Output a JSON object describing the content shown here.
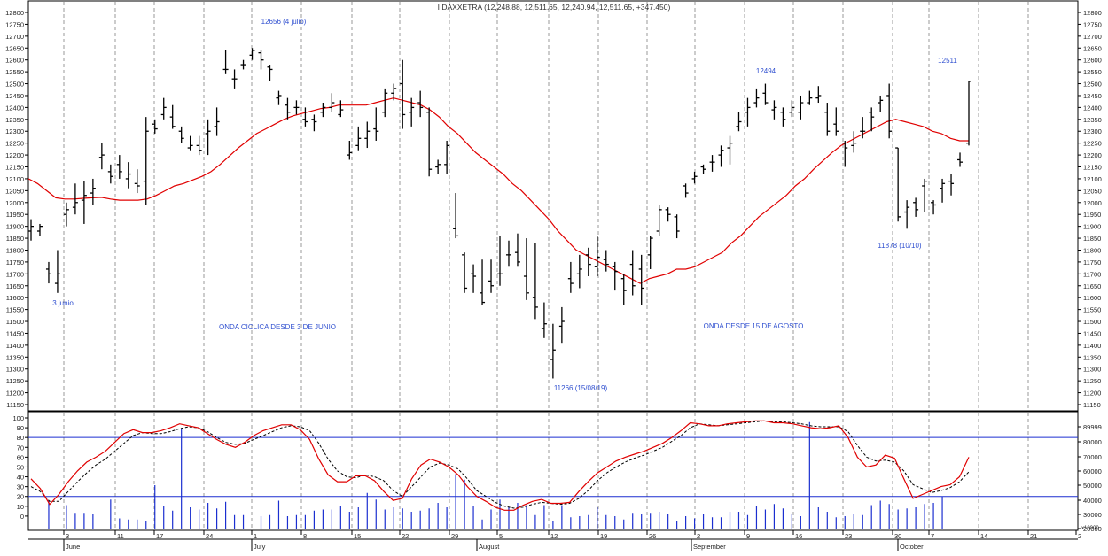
{
  "chart_data": [
    {
      "type": "ohlc",
      "title": "I DAXXETRA (12,248.88, 12,511.65, 12,240.94, 12,511.65, +347.450)",
      "ylim": [
        11150,
        12800
      ],
      "y_ticks": [
        11150,
        11200,
        11250,
        11300,
        11350,
        11400,
        11450,
        11500,
        11550,
        11600,
        11650,
        11700,
        11750,
        11800,
        11850,
        11900,
        11950,
        12000,
        12050,
        12100,
        12150,
        12200,
        12250,
        12300,
        12350,
        12400,
        12450,
        12500,
        12550,
        12600,
        12650,
        12700,
        12750,
        12800
      ],
      "y_tick_labels": [
        "11150",
        "11200",
        "11250",
        "11300",
        "11350",
        "11400",
        "11450",
        "11500",
        "11550",
        "11600",
        "11650",
        "11700",
        "11750",
        "11800",
        "11850",
        "11900",
        "11950",
        "12000",
        "12050",
        "12100",
        "12150",
        "12200",
        "12250",
        "12300",
        "12350",
        "12400",
        "12450",
        "12500",
        "12550",
        "12600",
        "12650",
        "12700",
        "12750",
        "12800"
      ],
      "bars": [
        [
          11880,
          11930,
          11840,
          11900
        ],
        [
          11880,
          11910,
          11860,
          11900
        ],
        [
          11720,
          11750,
          11660,
          11700
        ],
        [
          11660,
          11800,
          11620,
          11700
        ],
        [
          11950,
          12000,
          11900,
          11970
        ],
        [
          11980,
          12080,
          11950,
          12000
        ],
        [
          12010,
          12090,
          11910,
          12030
        ],
        [
          12040,
          12100,
          11990,
          12060
        ],
        [
          12190,
          12250,
          12140,
          12200
        ],
        [
          12130,
          12160,
          12080,
          12110
        ],
        [
          12160,
          12200,
          12100,
          12130
        ],
        [
          12100,
          12170,
          12060,
          12120
        ],
        [
          12080,
          12140,
          12040,
          12070
        ],
        [
          12090,
          12360,
          11990,
          12300
        ],
        [
          12330,
          12350,
          12290,
          12310
        ],
        [
          12370,
          12440,
          12350,
          12400
        ],
        [
          12360,
          12410,
          12310,
          12320
        ],
        [
          12300,
          12320,
          12250,
          12270
        ],
        [
          12230,
          12280,
          12220,
          12240
        ],
        [
          12240,
          12280,
          12200,
          12220
        ],
        [
          12290,
          12350,
          12200,
          12300
        ],
        [
          12320,
          12400,
          12280,
          12340
        ],
        [
          12560,
          12640,
          12540,
          12560
        ],
        [
          12520,
          12560,
          12480,
          12520
        ],
        [
          12580,
          12600,
          12560,
          12580
        ],
        [
          12620,
          12650,
          12600,
          12640
        ],
        [
          12630,
          12640,
          12560,
          12600
        ],
        [
          12570,
          12580,
          12510,
          12560
        ],
        [
          12440,
          12470,
          12410,
          12450
        ],
        [
          12410,
          12440,
          12350,
          12380
        ],
        [
          12400,
          12430,
          12370,
          12400
        ],
        [
          12350,
          12400,
          12320,
          12340
        ],
        [
          12350,
          12370,
          12300,
          12340
        ],
        [
          12380,
          12420,
          12360,
          12400
        ],
        [
          12400,
          12460,
          12380,
          12420
        ],
        [
          12370,
          12430,
          12360,
          12390
        ],
        [
          12200,
          12260,
          12180,
          12210
        ],
        [
          12240,
          12320,
          12220,
          12270
        ],
        [
          12270,
          12340,
          12230,
          12300
        ],
        [
          12310,
          12400,
          12260,
          12300
        ],
        [
          12380,
          12480,
          12360,
          12460
        ],
        [
          12460,
          12500,
          12430,
          12480
        ],
        [
          12500,
          12600,
          12310,
          12370
        ],
        [
          12380,
          12440,
          12320,
          12400
        ],
        [
          12420,
          12470,
          12360,
          12400
        ],
        [
          12380,
          12400,
          12110,
          12140
        ],
        [
          12150,
          12180,
          12120,
          12160
        ],
        [
          12160,
          12260,
          12120,
          12240
        ],
        [
          11890,
          12040,
          11850,
          11860
        ],
        [
          11780,
          11790,
          11620,
          11640
        ],
        [
          11700,
          11740,
          11620,
          11690
        ],
        [
          11620,
          11760,
          11570,
          11580
        ],
        [
          11670,
          11760,
          11620,
          11650
        ],
        [
          11700,
          11860,
          11650,
          11700
        ],
        [
          11780,
          11840,
          11730,
          11780
        ],
        [
          11790,
          11870,
          11730,
          11750
        ],
        [
          11690,
          11850,
          11590,
          11620
        ],
        [
          11600,
          11830,
          11510,
          11560
        ],
        [
          11470,
          11580,
          11430,
          11490
        ],
        [
          11340,
          11490,
          11260,
          11380
        ],
        [
          11480,
          11560,
          11410,
          11500
        ],
        [
          11680,
          11750,
          11620,
          11660
        ],
        [
          11700,
          11780,
          11640,
          11720
        ],
        [
          11780,
          11810,
          11690,
          11740
        ],
        [
          11730,
          11860,
          11690,
          11770
        ],
        [
          11760,
          11800,
          11710,
          11740
        ],
        [
          11730,
          11750,
          11630,
          11710
        ],
        [
          11680,
          11700,
          11570,
          11630
        ],
        [
          11740,
          11800,
          11610,
          11650
        ],
        [
          11720,
          11780,
          11570,
          11640
        ],
        [
          11780,
          11860,
          11720,
          11850
        ],
        [
          11880,
          11990,
          11860,
          11970
        ],
        [
          11970,
          11980,
          11920,
          11950
        ],
        [
          11940,
          11950,
          11850,
          11880
        ],
        [
          12070,
          12080,
          12020,
          12040
        ],
        [
          12100,
          12130,
          12080,
          12110
        ],
        [
          12150,
          12160,
          12120,
          12140
        ],
        [
          12170,
          12200,
          12130,
          12170
        ],
        [
          12200,
          12240,
          12150,
          12220
        ],
        [
          12230,
          12280,
          12160,
          12250
        ],
        [
          12320,
          12380,
          12300,
          12340
        ],
        [
          12380,
          12440,
          12320,
          12400
        ],
        [
          12420,
          12480,
          12400,
          12440
        ],
        [
          12460,
          12500,
          12410,
          12420
        ],
        [
          12390,
          12430,
          12350,
          12400
        ],
        [
          12380,
          12400,
          12320,
          12350
        ],
        [
          12380,
          12430,
          12360,
          12400
        ],
        [
          12380,
          12450,
          12350,
          12420
        ],
        [
          12420,
          12470,
          12410,
          12440
        ],
        [
          12440,
          12490,
          12420,
          12450
        ],
        [
          12380,
          12420,
          12280,
          12300
        ],
        [
          12330,
          12400,
          12280,
          12300
        ],
        [
          12250,
          12260,
          12150,
          12230
        ],
        [
          12240,
          12300,
          12210,
          12250
        ],
        [
          12300,
          12360,
          12270,
          12300
        ],
        [
          12380,
          12400,
          12300,
          12360
        ],
        [
          12420,
          12450,
          12380,
          12430
        ],
        [
          12450,
          12500,
          12270,
          12300
        ],
        [
          12230,
          12230,
          11920,
          11940
        ],
        [
          11960,
          12010,
          11890,
          11980
        ],
        [
          12000,
          12020,
          11940,
          11970
        ],
        [
          12070,
          12100,
          11960,
          12090
        ],
        [
          12000,
          12010,
          11950,
          11990
        ],
        [
          12060,
          12100,
          12000,
          12080
        ],
        [
          12090,
          12120,
          12030,
          12080
        ],
        [
          12180,
          12210,
          12150,
          12170
        ],
        [
          12250,
          12510,
          12240,
          12510
        ]
      ],
      "moving_average": [
        12100,
        12080,
        12050,
        12020,
        12015,
        12015,
        12018,
        12020,
        12022,
        12015,
        12010,
        12010,
        12010,
        12015,
        12030,
        12050,
        12070,
        12080,
        12095,
        12110,
        12130,
        12160,
        12195,
        12230,
        12260,
        12290,
        12310,
        12330,
        12350,
        12365,
        12375,
        12385,
        12395,
        12400,
        12410,
        12410,
        12410,
        12410,
        12420,
        12430,
        12440,
        12430,
        12420,
        12410,
        12390,
        12360,
        12320,
        12290,
        12250,
        12210,
        12180,
        12150,
        12120,
        12080,
        12050,
        12010,
        11970,
        11930,
        11880,
        11840,
        11800,
        11780,
        11760,
        11740,
        11720,
        11700,
        11680,
        11660,
        11680,
        11690,
        11700,
        11720,
        11720,
        11730,
        11750,
        11770,
        11790,
        11830,
        11860,
        11900,
        11940,
        11970,
        12000,
        12030,
        12070,
        12100,
        12140,
        12175,
        12210,
        12240,
        12260,
        12280,
        12300,
        12320,
        12340,
        12350,
        12340,
        12330,
        12320,
        12300,
        12290,
        12270,
        12260,
        12260
      ],
      "annotations": [
        "12656 (4 julio)",
        "3 junio",
        "ONDA CICLICA DESDE 3 DE JUNIO",
        "11266 (15/08/19)",
        "12494",
        "ONDA DESDE 15 DE AGOSTO",
        "12511",
        "11878 (10/10)"
      ],
      "hlines": []
    },
    {
      "type": "line+bar",
      "ylim_left": [
        -10,
        100
      ],
      "left_ticks": [
        0,
        10,
        20,
        30,
        40,
        50,
        60,
        70,
        80,
        90,
        100
      ],
      "left_tick_labels": [
        "0",
        "10",
        "20",
        "30",
        "40",
        "50",
        "60",
        "70",
        "80",
        "90",
        "100"
      ],
      "right_tick_labels": [
        "89999",
        "80000",
        "70000",
        "60000",
        "50000",
        "40000",
        "30000",
        "20000",
        "10000",
        "x10000"
      ],
      "hlines": [
        80,
        20
      ],
      "series": [
        {
          "values": [
            38,
            28,
            12,
            22,
            35,
            46,
            55,
            60,
            66,
            75,
            84,
            88,
            85,
            85,
            87,
            90,
            94,
            92,
            90,
            84,
            78,
            73,
            70,
            75,
            82,
            87,
            90,
            93,
            93,
            88,
            78,
            58,
            42,
            35,
            35,
            41,
            41,
            36,
            25,
            16,
            18,
            38,
            52,
            58,
            55,
            50,
            42,
            30,
            20,
            15,
            9,
            6,
            6,
            11,
            15,
            17,
            13,
            13,
            14,
            25,
            35,
            44,
            50,
            56,
            60,
            63,
            66,
            70,
            74,
            80,
            87,
            95,
            94,
            92,
            92,
            94,
            95,
            96,
            97,
            97,
            95,
            95,
            94,
            92,
            90,
            89,
            90,
            92,
            80,
            60,
            50,
            52,
            62,
            59,
            38,
            18,
            22,
            26,
            30,
            32,
            40,
            60
          ]
        },
        {
          "values": [
            30,
            25,
            15,
            15,
            25,
            35,
            44,
            52,
            58,
            66,
            74,
            82,
            85,
            84,
            84,
            86,
            89,
            91,
            90,
            86,
            80,
            75,
            73,
            74,
            78,
            82,
            86,
            90,
            92,
            91,
            87,
            74,
            58,
            46,
            40,
            39,
            42,
            40,
            36,
            26,
            20,
            30,
            40,
            50,
            54,
            52,
            48,
            38,
            26,
            20,
            14,
            10,
            8,
            9,
            12,
            14,
            13,
            12,
            13,
            18,
            26,
            36,
            44,
            50,
            55,
            59,
            62,
            66,
            70,
            76,
            82,
            90,
            94,
            93,
            92,
            93,
            94,
            95,
            96,
            97,
            96,
            96,
            95,
            94,
            92,
            91,
            91,
            91,
            86,
            72,
            60,
            56,
            57,
            55,
            46,
            32,
            28,
            24,
            26,
            29,
            35,
            45
          ]
        }
      ],
      "volume": [
        0,
        0,
        26,
        0,
        22,
        15,
        15,
        14,
        0,
        27,
        10,
        9,
        9,
        8,
        40,
        21,
        17,
        91,
        20,
        18,
        24,
        19,
        25,
        13,
        13,
        0,
        12,
        13,
        26,
        12,
        13,
        13,
        17,
        18,
        18,
        21,
        16,
        20,
        33,
        27,
        18,
        20,
        19,
        16,
        17,
        19,
        24,
        20,
        50,
        45,
        21,
        9,
        18,
        27,
        20,
        24,
        22,
        13,
        22,
        8,
        22,
        11,
        12,
        13,
        20,
        13,
        12,
        9,
        15,
        14,
        15,
        16,
        14,
        8,
        12,
        10,
        14,
        11,
        11,
        16,
        16,
        13,
        21,
        18,
        23,
        19,
        14,
        12,
        97,
        20,
        16,
        11,
        12,
        14,
        13,
        22,
        26,
        23,
        18,
        19,
        20,
        23,
        24,
        30
      ]
    }
  ],
  "x_axis": {
    "day_ticks": [
      "3",
      "11",
      "17",
      "24",
      "1",
      "8",
      "15",
      "22",
      "29",
      "5",
      "12",
      "19",
      "26",
      "2",
      "9",
      "16",
      "23",
      "30",
      "7",
      "14",
      "21",
      "2"
    ],
    "month_labels": [
      "June",
      "July",
      "August",
      "September",
      "October"
    ]
  }
}
